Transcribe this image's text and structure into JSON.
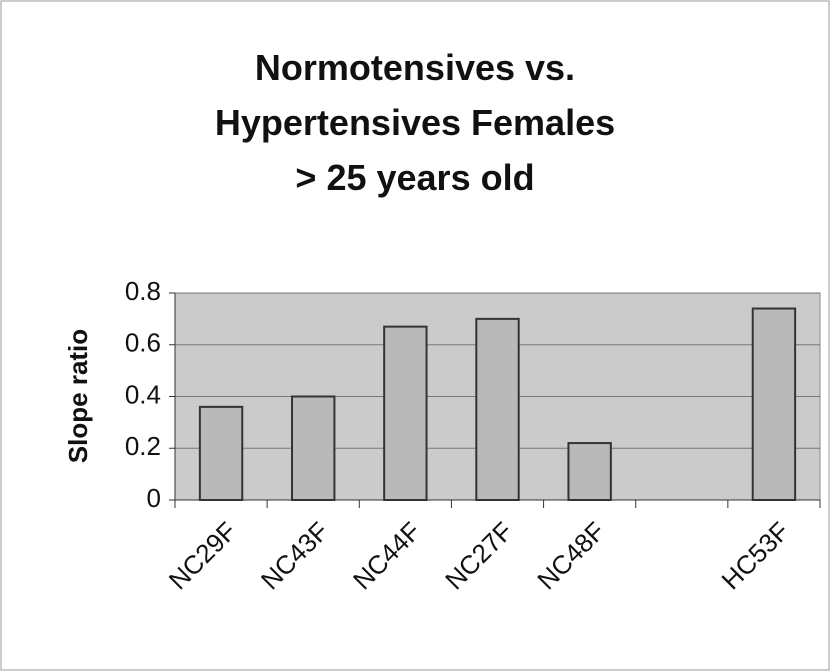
{
  "chart_data": {
    "type": "bar",
    "title": "Normotensives vs. Hypertensives Females > 25 years old",
    "y_label": "Slope ratio",
    "categories": [
      "NC29F",
      "NC43F",
      "NC44F",
      "NC27F",
      "NC48F",
      null,
      "HC53F"
    ],
    "values": [
      0.36,
      0.4,
      0.67,
      0.7,
      0.22,
      null,
      0.74
    ],
    "color": "#b9b9b9",
    "ylim": [
      0,
      0.8
    ],
    "yticks": [
      0,
      0.2,
      0.4,
      0.6,
      0.8
    ],
    "grid": true
  }
}
